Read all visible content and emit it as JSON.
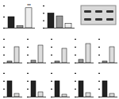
{
  "chart_data": [
    {
      "type": "bar",
      "categories": [
        null,
        null,
        null
      ],
      "values": [
        1,
        0.2,
        1.8
      ],
      "colors": [
        "#222222",
        "#999999",
        "#eeeeee"
      ],
      "ylim": [
        0,
        2
      ],
      "yticks": [
        0,
        1,
        2
      ],
      "tick_labels": false,
      "annotation": "**",
      "annotation_index": 2
    },
    {
      "type": "bar",
      "categories": [
        null,
        null,
        null
      ],
      "values": [
        1,
        0.8,
        0.3
      ],
      "colors": [
        "#222222",
        "#999999",
        "#eeeeee"
      ],
      "ylim": [
        0,
        1.5
      ],
      "yticks": [
        0,
        0.5,
        1,
        1.5
      ],
      "tick_labels": false
    },
    {
      "type": "bar",
      "categories": [
        null,
        null
      ],
      "values": [
        0.1,
        1
      ],
      "colors": [
        "#999999",
        "#dddddd"
      ],
      "ylim": [
        0,
        1.5
      ],
      "yticks": [
        0,
        0.5,
        1,
        1.5
      ],
      "tick_labels": false
    },
    {
      "type": "bar",
      "categories": [
        null,
        null
      ],
      "values": [
        0.15,
        1.1
      ],
      "colors": [
        "#999999",
        "#dddddd"
      ],
      "ylim": [
        0,
        1.5
      ],
      "yticks": [
        0,
        0.5,
        1,
        1.5
      ],
      "tick_labels": false
    },
    {
      "type": "bar",
      "categories": [
        null,
        null
      ],
      "values": [
        0.1,
        0.9
      ],
      "colors": [
        "#999999",
        "#dddddd"
      ],
      "ylim": [
        0,
        1.5
      ],
      "yticks": [
        0,
        0.5,
        1,
        1.5
      ],
      "tick_labels": false
    },
    {
      "type": "bar",
      "categories": [
        null,
        null
      ],
      "values": [
        0.2,
        1.2
      ],
      "colors": [
        "#999999",
        "#dddddd"
      ],
      "ylim": [
        0,
        1.5
      ],
      "yticks": [
        0,
        0.5,
        1,
        1.5
      ],
      "tick_labels": false
    },
    {
      "type": "bar",
      "categories": [
        null,
        null
      ],
      "values": [
        0.1,
        1
      ],
      "colors": [
        "#999999",
        "#dddddd"
      ],
      "ylim": [
        0,
        1.5
      ],
      "yticks": [
        0,
        0.5,
        1,
        1.5
      ],
      "tick_labels": false
    },
    {
      "type": "bar",
      "categories": [
        null,
        null
      ],
      "values": [
        1,
        0.2
      ],
      "colors": [
        "#222222",
        "#dddddd"
      ],
      "ylim": [
        0,
        1.5
      ],
      "yticks": [
        0,
        0.5,
        1,
        1.5
      ],
      "tick_labels": false
    },
    {
      "type": "bar",
      "categories": [
        null,
        null
      ],
      "values": [
        1,
        0.3
      ],
      "colors": [
        "#222222",
        "#dddddd"
      ],
      "ylim": [
        0,
        1.5
      ],
      "yticks": [
        0,
        0.5,
        1,
        1.5
      ],
      "tick_labels": false
    },
    {
      "type": "bar",
      "categories": [
        null,
        null
      ],
      "values": [
        1,
        0.15
      ],
      "colors": [
        "#222222",
        "#dddddd"
      ],
      "ylim": [
        0,
        1.5
      ],
      "yticks": [
        0,
        0.5,
        1,
        1.5
      ],
      "tick_labels": false
    },
    {
      "type": "bar",
      "categories": [
        null,
        null
      ],
      "values": [
        1,
        0.25
      ],
      "colors": [
        "#222222",
        "#dddddd"
      ],
      "ylim": [
        0,
        1.5
      ],
      "yticks": [
        0,
        0.5,
        1,
        1.5
      ],
      "tick_labels": false
    },
    {
      "type": "bar",
      "categories": [
        null,
        null
      ],
      "values": [
        1,
        0.2
      ],
      "colors": [
        "#222222",
        "#dddddd"
      ],
      "ylim": [
        0,
        1.5
      ],
      "yticks": [
        0,
        0.5,
        1,
        1.5
      ],
      "tick_labels": false
    }
  ]
}
